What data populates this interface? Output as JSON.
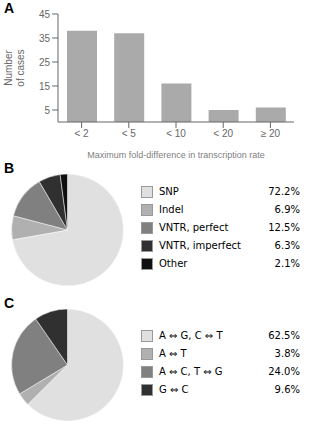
{
  "chart_data": [
    {
      "type": "bar",
      "title": "A",
      "categories": [
        "< 2",
        "< 5",
        "< 10",
        "< 20",
        "≥ 20"
      ],
      "values": [
        38,
        37,
        16,
        5,
        6
      ],
      "color": "#aaaaaa",
      "x_label": "Maximum fold-difference in transcription rate",
      "y_label": "Number\nof cases",
      "ylim": [
        0,
        45
      ],
      "yticks": [
        5,
        15,
        25,
        35,
        45
      ]
    },
    {
      "type": "pie",
      "title": "B",
      "categories": [
        "SNP",
        "Indel",
        "VNTR, perfect",
        "VNTR, imperfect",
        "Other"
      ],
      "values": [
        72.2,
        6.9,
        12.5,
        6.3,
        2.1
      ],
      "value_labels": [
        "72.2%",
        "6.9%",
        "12.5%",
        "6.3%",
        "2.1%"
      ],
      "colors": [
        "#e0e0e0",
        "#b0b0b0",
        "#808080",
        "#303030",
        "#101010"
      ],
      "legend": "right"
    },
    {
      "type": "pie",
      "title": "C",
      "categories": [
        "A ⇔ G, C ⇔ T",
        "A ⇔ T",
        "A ⇔ C, T ⇔ G",
        "G ⇔ C"
      ],
      "values": [
        62.5,
        3.8,
        24.0,
        9.6
      ],
      "value_labels": [
        "62.5%",
        "3.8%",
        "24.0%",
        "9.6%"
      ],
      "colors": [
        "#e0e0e0",
        "#b0b0b0",
        "#808080",
        "#303030"
      ],
      "legend": "right"
    }
  ]
}
